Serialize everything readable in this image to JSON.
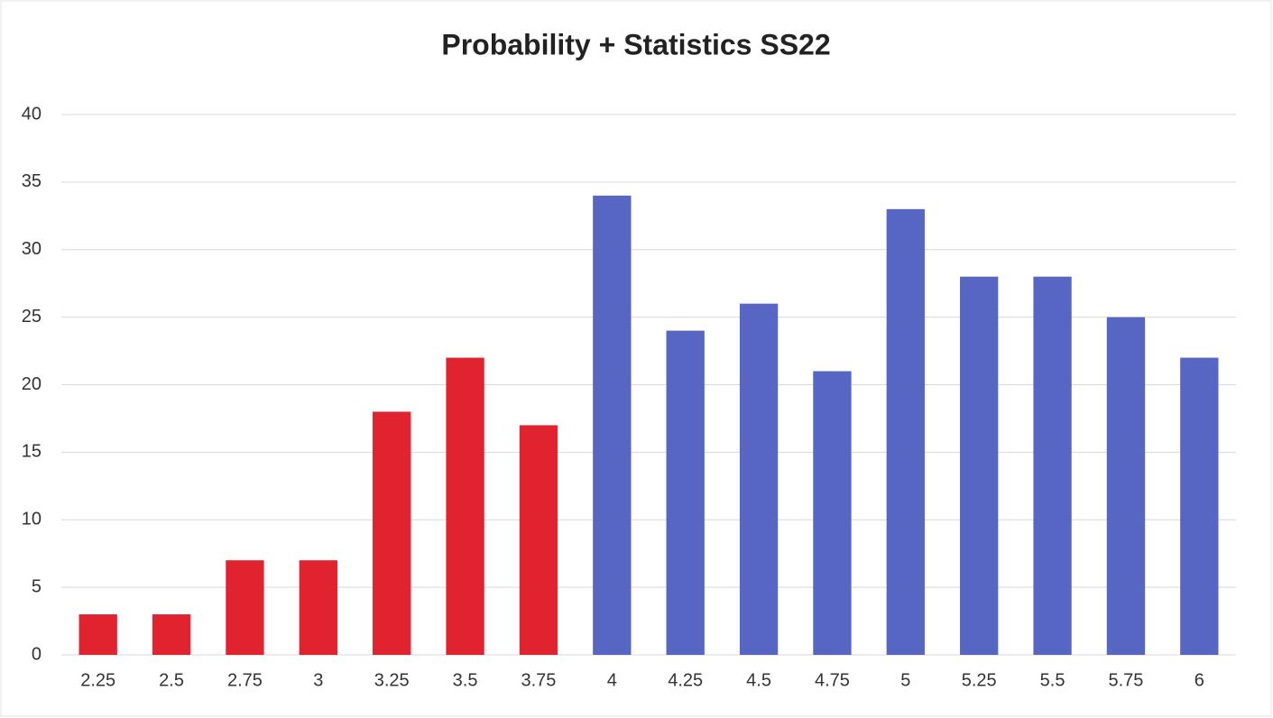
{
  "chart_data": {
    "type": "bar",
    "title": "Probability + Statistics SS22",
    "categories": [
      "2.25",
      "2.5",
      "2.75",
      "3",
      "3.25",
      "3.5",
      "3.75",
      "4",
      "4.25",
      "4.5",
      "4.75",
      "5",
      "5.25",
      "5.5",
      "5.75",
      "6"
    ],
    "values": [
      3,
      3,
      7,
      7,
      18,
      22,
      17,
      34,
      24,
      26,
      21,
      33,
      28,
      28,
      25,
      22
    ],
    "colors": [
      "#e0232f",
      "#e0232f",
      "#e0232f",
      "#e0232f",
      "#e0232f",
      "#e0232f",
      "#e0232f",
      "#5766c2",
      "#5766c2",
      "#5766c2",
      "#5766c2",
      "#5766c2",
      "#5766c2",
      "#5766c2",
      "#5766c2",
      "#5766c2"
    ],
    "ylim": [
      0,
      40
    ],
    "yticks": [
      0,
      5,
      10,
      15,
      20,
      25,
      30,
      35,
      40
    ],
    "grid": true
  }
}
